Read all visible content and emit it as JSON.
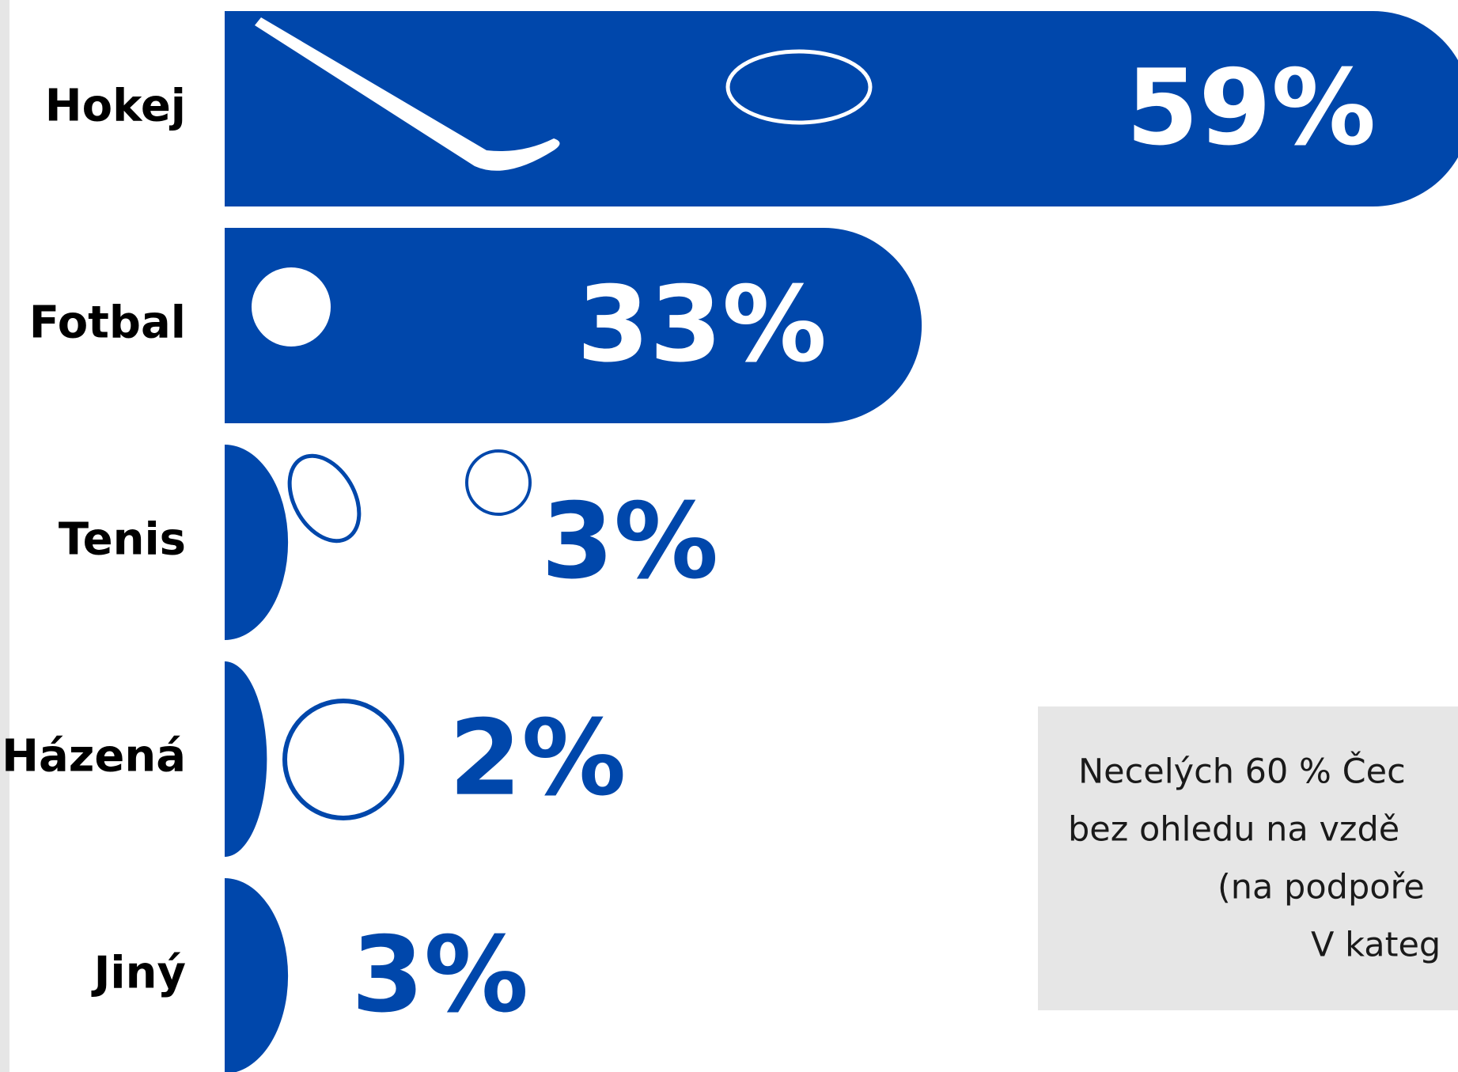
{
  "chart_data": {
    "type": "bar",
    "orientation": "horizontal",
    "categories": [
      "Hokej",
      "Fotbal",
      "Tenis",
      "Házená",
      "Jiný"
    ],
    "values": [
      59,
      33,
      3,
      2,
      3
    ],
    "value_labels": [
      "59%",
      "33%",
      "3%",
      "2%",
      "3%"
    ],
    "color": "#0047ab",
    "annotation": [
      "Necelých 60 % Čec",
      "bez ohledu na vzdě",
      "(na podpoře",
      "V kateg"
    ]
  }
}
